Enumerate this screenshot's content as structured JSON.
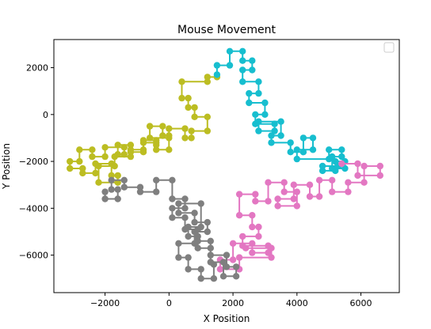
{
  "chart_data": {
    "type": "line",
    "title": "Mouse Movement",
    "xlabel": "X Position",
    "ylabel": "Y Position",
    "xlim": [
      -3600,
      7200
    ],
    "ylim": [
      -7600,
      3200
    ],
    "xticks": [
      -2000,
      0,
      2000,
      4000,
      6000
    ],
    "yticks": [
      2000,
      0,
      -2000,
      -4000,
      -6000
    ],
    "legend": "top-right (empty)",
    "grid": false,
    "series": [
      {
        "color": "#bcbd22",
        "x": [
          1500,
          1200,
          1200,
          400,
          400,
          600,
          600,
          800,
          800,
          1200,
          1200,
          700,
          700,
          500,
          500,
          0,
          0,
          -200,
          -200,
          -600,
          -600,
          0,
          0,
          -400,
          -400,
          -800,
          -800,
          -1200,
          -1200,
          -1600,
          -1600,
          -1400,
          -1400,
          -2000,
          -2000,
          -2400,
          -2400,
          -2800,
          -2800,
          -3100,
          -3100,
          -2700,
          -2700,
          -2300,
          -2300,
          -1800,
          -1800,
          -1600,
          -1600,
          -2200,
          -2200,
          -1700,
          -1700,
          -1200,
          -1200,
          -800,
          -800,
          -400,
          -400
        ],
        "y": [
          1600,
          1600,
          1400,
          1400,
          700,
          700,
          300,
          300,
          -100,
          -100,
          -700,
          -700,
          -1000,
          -1000,
          -600,
          -600,
          -900,
          -900,
          -500,
          -500,
          -1000,
          -1000,
          -1500,
          -1500,
          -1200,
          -1200,
          -1600,
          -1600,
          -1300,
          -1300,
          -1700,
          -1700,
          -1400,
          -1400,
          -1800,
          -1800,
          -1500,
          -1500,
          -2000,
          -2000,
          -2300,
          -2300,
          -2500,
          -2500,
          -2100,
          -2100,
          -2600,
          -2600,
          -2900,
          -2900,
          -2200,
          -2200,
          -1800,
          -1800,
          -1500,
          -1500,
          -1100,
          -1100,
          -1300
        ]
      },
      {
        "color": "#17becf",
        "x": [
          1500,
          1500,
          1900,
          1900,
          2300,
          2300,
          2600,
          2600,
          2300,
          2300,
          2800,
          2800,
          2500,
          2500,
          3000,
          3000,
          2700,
          2700,
          3300,
          3300,
          2800,
          2800,
          3500,
          3500,
          3200,
          3200,
          3800,
          3800,
          4200,
          4200,
          4500,
          4500,
          4000,
          4000,
          5000,
          5000,
          5400,
          5400,
          5100,
          5100,
          5500,
          5500,
          5200,
          5200,
          4800,
          4800,
          5300
        ],
        "y": [
          1700,
          2100,
          2100,
          2700,
          2700,
          2300,
          2300,
          1900,
          1900,
          1400,
          1400,
          900,
          900,
          500,
          500,
          0,
          0,
          -400,
          -400,
          -700,
          -700,
          -300,
          -300,
          -900,
          -900,
          -1200,
          -1200,
          -1600,
          -1600,
          -1000,
          -1000,
          -1500,
          -1500,
          -1900,
          -1900,
          -1500,
          -1500,
          -1800,
          -1800,
          -2300,
          -2300,
          -2000,
          -2000,
          -2400,
          -2400,
          -2200,
          -2200
        ]
      },
      {
        "color": "#e377c2",
        "x": [
          5400,
          5900,
          5900,
          6600,
          6600,
          6100,
          6100,
          5600,
          5600,
          5100,
          5100,
          4700,
          4700,
          4400,
          4400,
          3900,
          3900,
          3400,
          3400,
          4000,
          4000,
          3600,
          3600,
          3100,
          3100,
          2700,
          2700,
          2200,
          2200,
          2600,
          2600,
          2800,
          2800,
          2300,
          2300,
          3100,
          3100,
          2600,
          2600,
          2000,
          2000,
          1600,
          1600,
          2200,
          2200,
          3200,
          3200,
          2400
        ],
        "y": [
          -2100,
          -2100,
          -2600,
          -2600,
          -2200,
          -2200,
          -2900,
          -2900,
          -3300,
          -3300,
          -2800,
          -2800,
          -3500,
          -3500,
          -3000,
          -3000,
          -3600,
          -3600,
          -3900,
          -3900,
          -3300,
          -3300,
          -2900,
          -2900,
          -3700,
          -3700,
          -3400,
          -3400,
          -4300,
          -4300,
          -4800,
          -4800,
          -5200,
          -5200,
          -5600,
          -5600,
          -5900,
          -5900,
          -5500,
          -5500,
          -6200,
          -6200,
          -6600,
          -6600,
          -6100,
          -6100,
          -5700,
          -5700
        ]
      },
      {
        "color": "#7f7f7f",
        "x": [
          1400,
          1400,
          1000,
          1000,
          600,
          600,
          300,
          300,
          800,
          800,
          1200,
          1200,
          800,
          800,
          300,
          300,
          1000,
          1000,
          600,
          600,
          900,
          900,
          1300,
          1300,
          1700,
          1700,
          2100,
          2100,
          1800,
          1800,
          1300,
          1300,
          900,
          900,
          500,
          500,
          100,
          100,
          500,
          500,
          100,
          100,
          -400,
          -400,
          -900,
          -900,
          -1400,
          -1400,
          -1800,
          -1800,
          -1600,
          -1600,
          -2000,
          -2000
        ],
        "y": [
          -6400,
          -7000,
          -7000,
          -6600,
          -6600,
          -6100,
          -6100,
          -5500,
          -5500,
          -5000,
          -5000,
          -4600,
          -4600,
          -4200,
          -4200,
          -3800,
          -3800,
          -4800,
          -4800,
          -5200,
          -5200,
          -5700,
          -5700,
          -6300,
          -6300,
          -6900,
          -6900,
          -6500,
          -6500,
          -6000,
          -6000,
          -5400,
          -5400,
          -4900,
          -4900,
          -4400,
          -4400,
          -4000,
          -4000,
          -3600,
          -3600,
          -2800,
          -2800,
          -3300,
          -3300,
          -3100,
          -3100,
          -2800,
          -2800,
          -3200,
          -3200,
          -3600,
          -3600,
          -3300
        ]
      }
    ]
  }
}
